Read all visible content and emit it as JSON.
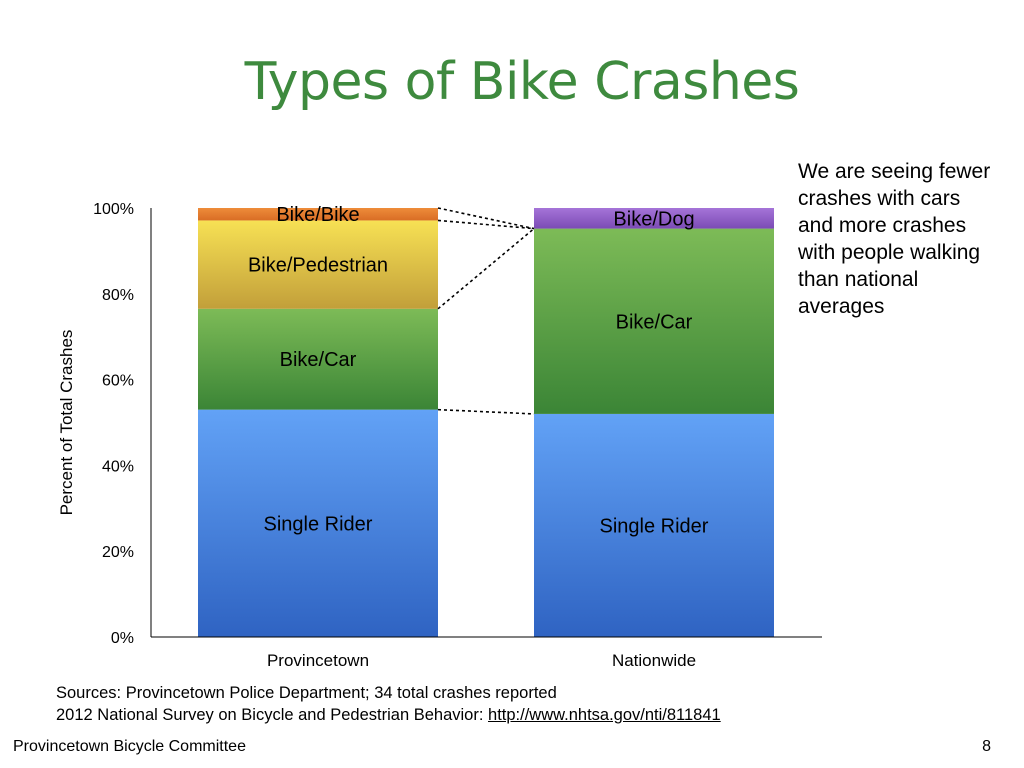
{
  "slide": {
    "title": "Types of Bike Crashes",
    "side_note": "We are seeing fewer crashes with cars and more crashes with people walking than national averages",
    "sources_line1": "Sources: Provincetown Police Department; 34 total crashes reported",
    "sources_line2_prefix": "2012 National Survey on Bicycle and Pedestrian Behavior: ",
    "sources_link": "http://www.nhtsa.gov/nti/811841",
    "footer": "Provincetown Bicycle Committee",
    "page_number": "8"
  },
  "chart_data": {
    "type": "bar",
    "stacked": true,
    "normalized": true,
    "ylabel": "Percent of Total Crashes",
    "ylim": [
      0,
      100
    ],
    "yticks": [
      "0%",
      "20%",
      "40%",
      "60%",
      "80%",
      "100%"
    ],
    "categories": [
      "Provincetown",
      "Nationwide"
    ],
    "series": [
      {
        "name": "Single Rider",
        "values": [
          53,
          52
        ],
        "color": "#4a86d9",
        "label": [
          "Single Rider",
          "Single Rider"
        ]
      },
      {
        "name": "Bike/Car",
        "values": [
          23.5,
          43.2
        ],
        "color": "#4f9a3e",
        "label": [
          "Bike/Car",
          "Bike/Car"
        ]
      },
      {
        "name": "Bike/Pedestrian",
        "values": [
          20.6,
          0
        ],
        "color": "#e3c743",
        "label": [
          "Bike/Pedestrian",
          ""
        ]
      },
      {
        "name": "Bike/Bike",
        "values": [
          2.9,
          0
        ],
        "color": "#e47e30",
        "label": [
          "Bike/Bike",
          ""
        ]
      },
      {
        "name": "Bike/Dog",
        "values": [
          0,
          4.8
        ],
        "color": "#8c5bc4",
        "label": [
          "",
          "Bike/Dog"
        ]
      }
    ]
  }
}
